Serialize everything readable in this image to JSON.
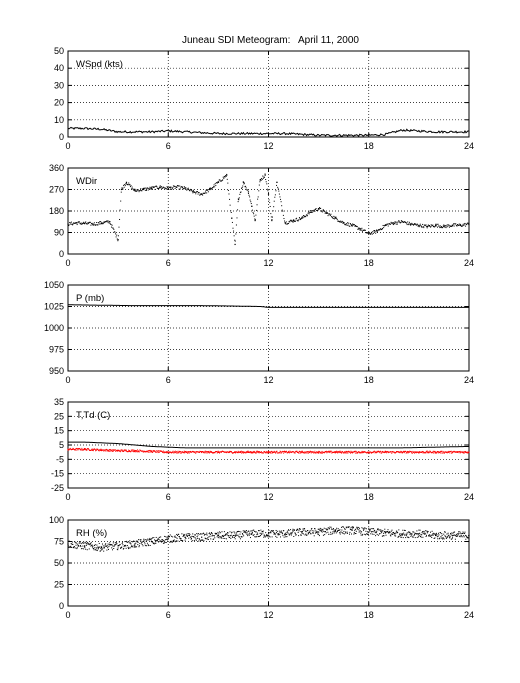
{
  "title_left": "Juneau SDI Meteogram:",
  "title_right": "April 11, 2000",
  "chart_data": [
    {
      "type": "line",
      "label": "WSpd (kts)",
      "xlim": [
        0,
        24
      ],
      "xticks": [
        0,
        6,
        12,
        18,
        24
      ],
      "ylim": [
        0,
        50
      ],
      "yticks": [
        0,
        10,
        20,
        30,
        40,
        50
      ],
      "grid": true,
      "series": [
        {
          "style": "line",
          "color": "#000000",
          "x": [
            0,
            1,
            2,
            3,
            4,
            5,
            6,
            7,
            8,
            9,
            10,
            11,
            12,
            13,
            14,
            15,
            16,
            17,
            18,
            19,
            20,
            21,
            22,
            23,
            24
          ],
          "y": [
            5,
            5,
            4.5,
            3,
            3,
            3,
            3.5,
            3,
            2.5,
            2,
            2,
            2,
            2,
            2,
            1.5,
            1,
            1,
            1,
            1,
            1.5,
            4,
            3.5,
            3,
            3,
            3
          ]
        }
      ]
    },
    {
      "type": "scatter",
      "label": "WDir",
      "xlim": [
        0,
        24
      ],
      "xticks": [
        0,
        6,
        12,
        18,
        24
      ],
      "ylim": [
        0,
        360
      ],
      "yticks": [
        0,
        90,
        180,
        270,
        360
      ],
      "grid": true,
      "series": [
        {
          "style": "dots",
          "color": "#000000",
          "x": [
            0,
            0.5,
            1,
            1.5,
            2,
            2.5,
            3,
            3.2,
            3.5,
            4,
            4.5,
            5,
            5.5,
            6,
            6.5,
            7,
            7.5,
            8,
            8.5,
            9,
            9.5,
            9.8,
            10,
            10.2,
            10.5,
            10.8,
            11,
            11.2,
            11.5,
            11.8,
            12,
            12.2,
            12.5,
            13,
            13.5,
            14,
            14.5,
            15,
            15.5,
            16,
            16.5,
            17,
            17.5,
            18,
            18.5,
            19,
            19.5,
            20,
            20.5,
            21,
            21.5,
            22,
            22.5,
            23,
            23.5,
            24
          ],
          "y": [
            125,
            130,
            128,
            125,
            130,
            135,
            60,
            270,
            300,
            265,
            270,
            275,
            280,
            275,
            280,
            275,
            260,
            250,
            270,
            300,
            330,
            150,
            40,
            230,
            300,
            260,
            200,
            140,
            310,
            330,
            250,
            140,
            300,
            130,
            140,
            150,
            175,
            190,
            170,
            150,
            130,
            120,
            105,
            85,
            95,
            120,
            130,
            135,
            125,
            120,
            115,
            120,
            115,
            120,
            120,
            125
          ]
        }
      ]
    },
    {
      "type": "line",
      "label": "P (mb)",
      "xlim": [
        0,
        24
      ],
      "xticks": [
        0,
        6,
        12,
        18,
        24
      ],
      "ylim": [
        950,
        1050
      ],
      "yticks": [
        950,
        975,
        1000,
        1025,
        1050
      ],
      "grid": true,
      "series": [
        {
          "style": "line",
          "color": "#000000",
          "x": [
            0,
            2,
            4,
            6,
            8,
            10,
            11.5,
            12,
            14,
            16,
            18,
            20,
            22,
            24
          ],
          "y": [
            1027,
            1026.5,
            1026,
            1026,
            1026,
            1025.5,
            1025,
            1024,
            1024,
            1024,
            1024,
            1024,
            1024,
            1024
          ]
        }
      ]
    },
    {
      "type": "line",
      "label": "T,Td (C)",
      "xlim": [
        0,
        24
      ],
      "xticks": [
        0,
        6,
        12,
        18,
        24
      ],
      "ylim": [
        -25,
        35
      ],
      "yticks": [
        -25,
        -15,
        -5,
        5,
        15,
        25,
        35
      ],
      "grid": true,
      "series": [
        {
          "style": "line",
          "color": "#000000",
          "x": [
            0,
            1,
            2,
            3,
            4,
            5,
            6,
            7,
            8,
            10,
            12,
            14,
            16,
            18,
            20,
            22,
            24
          ],
          "y": [
            7,
            7,
            6.5,
            6,
            5,
            4,
            3.5,
            3,
            3,
            3,
            3,
            3,
            3,
            3,
            3,
            3.5,
            4
          ]
        },
        {
          "style": "dots",
          "color": "#ff0000",
          "x": [
            0,
            1,
            2,
            3,
            4,
            5,
            6,
            7,
            8,
            9,
            10,
            11,
            12,
            13,
            14,
            15,
            16,
            17,
            18,
            19,
            20,
            21,
            22,
            23,
            24
          ],
          "y": [
            2,
            2,
            1.5,
            1,
            1,
            0.5,
            0,
            0,
            0,
            0,
            0,
            0,
            0,
            0,
            0,
            0,
            0,
            0,
            0,
            0,
            0,
            0,
            0,
            0,
            0
          ]
        }
      ]
    },
    {
      "type": "scatter",
      "label": "RH (%)",
      "xlim": [
        0,
        24
      ],
      "xticks": [
        0,
        6,
        12,
        18,
        24
      ],
      "ylim": [
        0,
        100
      ],
      "yticks": [
        0,
        25,
        50,
        75,
        100
      ],
      "grid": true,
      "series": [
        {
          "style": "dots",
          "color": "#000000",
          "x": [
            0,
            1,
            2,
            3,
            4,
            5,
            6,
            7,
            8,
            9,
            10,
            11,
            12,
            13,
            14,
            15,
            16,
            17,
            18,
            19,
            20,
            21,
            22,
            23,
            24
          ],
          "y": [
            72,
            70,
            68,
            70,
            72,
            75,
            78,
            80,
            80,
            82,
            82,
            84,
            84,
            84,
            86,
            86,
            88,
            88,
            86,
            85,
            84,
            84,
            82,
            82,
            82
          ]
        }
      ]
    }
  ]
}
